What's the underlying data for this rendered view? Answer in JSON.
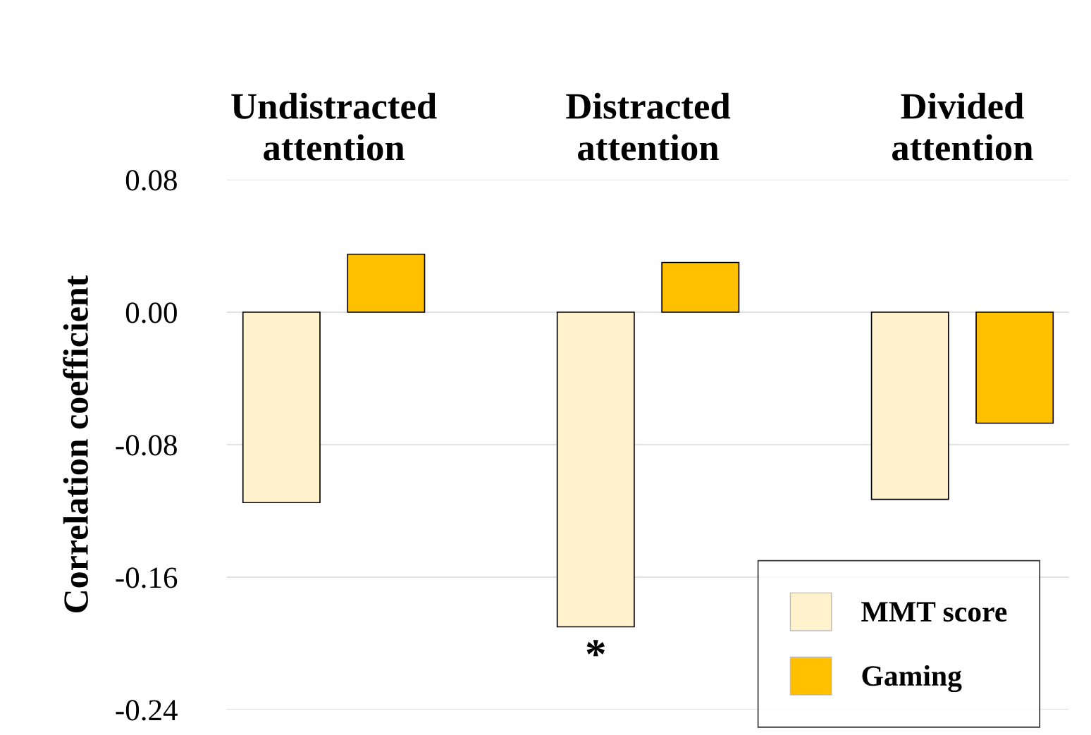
{
  "chart_data": {
    "type": "bar",
    "ylabel": "Correlation coefficient",
    "categories": [
      "Undistracted\nattention",
      "Distracted\nattention",
      "Divided\nattention"
    ],
    "series": [
      {
        "name": "MMT score",
        "color": "#fff2cc",
        "values": [
          -0.115,
          -0.19,
          -0.113
        ]
      },
      {
        "name": "Gaming",
        "color": "#ffc000",
        "values": [
          0.035,
          0.03,
          -0.067
        ]
      }
    ],
    "ylim": [
      -0.24,
      0.08
    ],
    "yticks": [
      {
        "value": 0.08,
        "label": "0.08"
      },
      {
        "value": 0.0,
        "label": "0.00"
      },
      {
        "value": -0.08,
        "label": "-0.08"
      },
      {
        "value": -0.16,
        "label": "-0.16"
      },
      {
        "value": -0.24,
        "label": "-0.24"
      }
    ],
    "grid": "y",
    "legend": "bottom right",
    "annotations": [
      "*"
    ]
  }
}
